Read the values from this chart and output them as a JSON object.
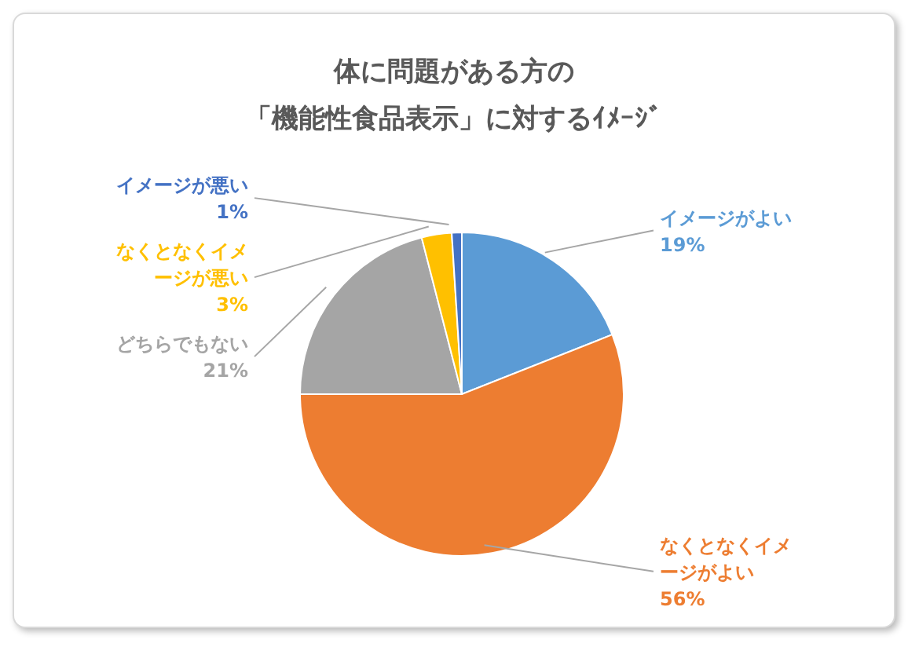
{
  "chart_data": {
    "type": "pie",
    "title": "体に問題がある方の「機能性食品表示」に対するｲﾒｰｼﾞ",
    "categories": [
      "イメージがよい",
      "なくとなくイメージがよい",
      "どちらでもない",
      "なくとなくイメージが悪い",
      "イメージが悪い"
    ],
    "values": [
      19,
      56,
      21,
      3,
      1
    ],
    "colors": [
      "#5b9bd5",
      "#ed7d31",
      "#a5a5a5",
      "#ffc000",
      "#4472c4"
    ],
    "value_labels": [
      "19%",
      "56%",
      "21%",
      "3%",
      "1%"
    ]
  }
}
